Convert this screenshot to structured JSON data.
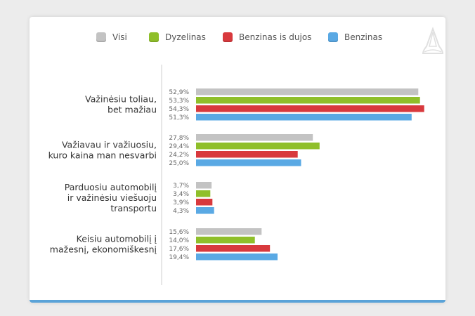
{
  "colors": {
    "Visi": "#c3c3c3",
    "Dyzelinas": "#8fbf2a",
    "Benzinas is dujos": "#d8393d",
    "Benzinas": "#5aa9e4"
  },
  "chart_data": {
    "type": "bar",
    "orientation": "horizontal",
    "legend_position": "top",
    "grid": false,
    "xlim": [
      0,
      57
    ],
    "categories": [
      [
        "Važinėsiu toliau,",
        "bet mažiau"
      ],
      [
        "Važiavau ir važiuosiu,",
        "kuro kaina man nesvarbi"
      ],
      [
        "Parduosiu automobilį",
        "ir važinėsiu viešuoju",
        "transportu"
      ],
      [
        "Keisiu automobilį į",
        "mažesnį, ekonomiškesnį"
      ]
    ],
    "series": [
      {
        "name": "Visi",
        "values": [
          52.9,
          27.8,
          3.7,
          15.6
        ],
        "labels": [
          "52,9%",
          "27,8%",
          "3,7%",
          "15,6%"
        ]
      },
      {
        "name": "Dyzelinas",
        "values": [
          53.3,
          29.4,
          3.4,
          14.0
        ],
        "labels": [
          "53,3%",
          "29,4%",
          "3,4%",
          "14,0%"
        ]
      },
      {
        "name": "Benzinas is dujos",
        "values": [
          54.3,
          24.2,
          3.9,
          17.6
        ],
        "labels": [
          "54,3%",
          "24,2%",
          "3,9%",
          "17,6%"
        ]
      },
      {
        "name": "Benzinas",
        "values": [
          51.3,
          25.0,
          4.3,
          19.4
        ],
        "labels": [
          "51,3%",
          "25,0%",
          "4,3%",
          "19,4%"
        ]
      }
    ]
  }
}
